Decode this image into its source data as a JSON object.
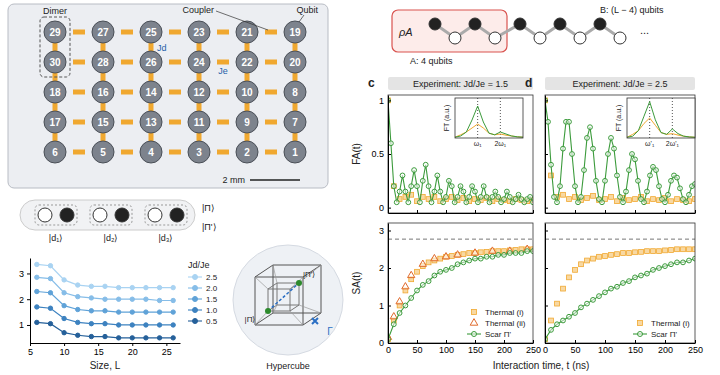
{
  "chart_data": [
    {
      "type": "line",
      "x_label": "Size, L",
      "legend_title": "Jd/Je",
      "legend": "right",
      "marker": "circle",
      "line_style": "solid",
      "x": [
        6,
        8,
        10,
        12,
        14,
        16,
        18,
        20,
        22,
        24,
        26
      ],
      "xlim": [
        5,
        27
      ],
      "xticks": [
        5,
        10,
        15,
        20,
        25
      ],
      "ylim": [
        0.3,
        3.6
      ],
      "yticks": [
        1,
        2,
        3
      ],
      "series": [
        {
          "name": "2.5",
          "color": "#a9d3f2",
          "values": [
            3.35,
            3.3,
            2.75,
            2.55,
            2.5,
            2.5,
            2.45,
            2.45,
            2.45,
            2.45,
            2.45
          ]
        },
        {
          "name": "2.0",
          "color": "#86bde8",
          "values": [
            2.85,
            2.8,
            2.25,
            2.1,
            2.05,
            2.0,
            2.0,
            2.0,
            2.0,
            1.95,
            1.95
          ]
        },
        {
          "name": "1.5",
          "color": "#5fa2d8",
          "values": [
            2.3,
            2.25,
            1.75,
            1.6,
            1.55,
            1.55,
            1.5,
            1.5,
            1.5,
            1.5,
            1.5
          ]
        },
        {
          "name": "1.0",
          "color": "#3d82c0",
          "values": [
            1.7,
            1.65,
            1.25,
            1.1,
            1.05,
            1.05,
            1.0,
            1.0,
            1.0,
            1.0,
            1.0
          ]
        },
        {
          "name": "0.5",
          "color": "#25609a",
          "values": [
            1.1,
            1.05,
            0.7,
            0.6,
            0.55,
            0.55,
            0.5,
            0.5,
            0.5,
            0.5,
            0.5
          ]
        }
      ]
    },
    {
      "type": "scatter",
      "panel_label": "c",
      "title": "Experiment: Jd/Je = 1.5",
      "y_label": "FA(t)",
      "tick_labels": "y",
      "xlim": [
        0,
        250
      ],
      "xticks": [
        0,
        50,
        100,
        150,
        200,
        250
      ],
      "ylim": [
        -0.05,
        1.05
      ],
      "yticks": [
        0,
        0.5,
        1
      ],
      "series": [
        {
          "color": "#f0a830",
          "marker": "square",
          "line_style": "none",
          "x": [
            0,
            10,
            20,
            30,
            40,
            50,
            60,
            70,
            80,
            90,
            100,
            110,
            120,
            130,
            140,
            150,
            160,
            170,
            180,
            190,
            200,
            210,
            220,
            230,
            240,
            250
          ],
          "values": [
            1.0,
            0.2,
            0.08,
            0.1,
            0.12,
            0.06,
            0.1,
            0.08,
            0.1,
            0.06,
            0.08,
            0.1,
            0.07,
            0.09,
            0.06,
            0.08,
            0.07,
            0.09,
            0.06,
            0.08,
            0.07,
            0.06,
            0.08,
            0.07,
            0.06,
            0.07
          ]
        },
        {
          "color": "#3c9b3c",
          "marker": "circle-open",
          "line_style": "solid",
          "x": [
            0,
            5,
            10,
            15,
            20,
            25,
            30,
            35,
            40,
            45,
            50,
            55,
            60,
            65,
            70,
            75,
            80,
            85,
            90,
            95,
            100,
            105,
            110,
            115,
            120,
            125,
            130,
            135,
            140,
            145,
            150,
            155,
            160,
            165,
            170,
            175,
            180,
            185,
            190,
            195,
            200,
            205,
            210,
            215,
            220,
            225,
            230,
            235,
            240,
            245,
            250
          ],
          "values": [
            1.0,
            0.6,
            0.2,
            0.05,
            0.15,
            0.3,
            0.15,
            0.05,
            0.2,
            0.35,
            0.2,
            0.05,
            0.25,
            0.4,
            0.2,
            0.05,
            0.15,
            0.3,
            0.15,
            0.05,
            0.1,
            0.25,
            0.2,
            0.05,
            0.1,
            0.2,
            0.15,
            0.05,
            0.1,
            0.2,
            0.15,
            0.05,
            0.1,
            0.2,
            0.1,
            0.05,
            0.1,
            0.15,
            0.1,
            0.05,
            0.08,
            0.15,
            0.1,
            0.05,
            0.08,
            0.12,
            0.08,
            0.05,
            0.08,
            0.1,
            0.05
          ]
        }
      ]
    },
    {
      "type": "line",
      "y_label": "FT (a.u.)",
      "tick_labels": false,
      "line_style": "solid",
      "xlim": [
        0,
        12
      ],
      "ylim": [
        0,
        1
      ],
      "x": [
        0,
        1,
        2,
        3,
        4,
        5,
        6,
        7,
        8,
        9,
        10,
        11,
        12
      ],
      "annotations": [
        {
          "x": 4,
          "label": "ω₁"
        },
        {
          "x": 8,
          "label": "2ω₁"
        }
      ],
      "series": [
        {
          "color": "#f0a830",
          "values": [
            0.02,
            0.08,
            0.15,
            0.25,
            0.35,
            0.25,
            0.12,
            0.08,
            0.1,
            0.07,
            0.05,
            0.03,
            0.02
          ]
        },
        {
          "color": "#3c9b3c",
          "values": [
            0.02,
            0.05,
            0.15,
            0.45,
            0.8,
            0.4,
            0.12,
            0.08,
            0.15,
            0.1,
            0.05,
            0.03,
            0.02
          ]
        }
      ]
    },
    {
      "type": "scatter",
      "y_label": "SA(t)",
      "legend": "lower right",
      "xlim": [
        0,
        250
      ],
      "xticks": [
        0,
        50,
        100,
        150,
        200,
        250
      ],
      "ylim": [
        0,
        3.2
      ],
      "yticks": [
        0,
        1,
        2,
        3
      ],
      "hlines": [
        2.77
      ],
      "series": [
        {
          "name": "Thermal (i)",
          "color": "#f0a830",
          "marker": "square",
          "line_style": "none",
          "x": [
            0,
            10,
            20,
            30,
            40,
            50,
            60,
            70,
            80,
            90,
            100,
            110,
            120,
            130,
            140,
            150,
            160,
            170,
            180,
            190,
            200,
            210,
            220,
            230,
            240,
            250
          ],
          "values": [
            0.1,
            0.6,
            1.0,
            1.4,
            1.7,
            1.9,
            2.05,
            2.15,
            2.2,
            2.25,
            2.3,
            2.32,
            2.35,
            2.37,
            2.4,
            2.4,
            2.42,
            2.43,
            2.45,
            2.45,
            2.45,
            2.47,
            2.48,
            2.5,
            2.5,
            2.5
          ]
        },
        {
          "name": "Thermal (ii)",
          "color": "#e06a2c",
          "marker": "triangle",
          "line_style": "none",
          "x": [
            0,
            10,
            20,
            30,
            40,
            60,
            80,
            100,
            120,
            150,
            180,
            210,
            240
          ],
          "values": [
            0.15,
            0.7,
            1.1,
            1.5,
            1.8,
            2.1,
            2.25,
            2.3,
            2.35,
            2.4,
            2.45,
            2.45,
            2.5
          ]
        },
        {
          "name": "Scar Π'",
          "color": "#3c9b3c",
          "marker": "circle-open",
          "line_style": "solid",
          "x": [
            0,
            10,
            20,
            30,
            40,
            50,
            60,
            70,
            80,
            90,
            100,
            110,
            120,
            130,
            140,
            150,
            160,
            170,
            180,
            190,
            200,
            210,
            220,
            230,
            240,
            250
          ],
          "values": [
            0.1,
            0.5,
            0.8,
            1.0,
            1.2,
            1.4,
            1.55,
            1.65,
            1.8,
            1.9,
            1.95,
            2.0,
            2.1,
            2.15,
            2.2,
            2.25,
            2.25,
            2.3,
            2.3,
            2.35,
            2.35,
            2.4,
            2.4,
            2.4,
            2.45,
            2.45
          ]
        }
      ]
    },
    {
      "type": "scatter",
      "panel_label": "d",
      "title": "Experiment: Jd/Je = 2.5",
      "tick_labels": false,
      "xlim": [
        0,
        250
      ],
      "xticks": [
        0,
        50,
        100,
        150,
        200,
        250
      ],
      "ylim": [
        -0.05,
        1.05
      ],
      "yticks": [
        0,
        0.5,
        1
      ],
      "series": [
        {
          "color": "#f0a830",
          "marker": "square",
          "line_style": "none",
          "x": [
            0,
            10,
            20,
            30,
            40,
            50,
            60,
            70,
            80,
            90,
            100,
            110,
            120,
            130,
            140,
            150,
            160,
            170,
            180,
            190,
            200,
            210,
            220,
            230,
            240,
            250
          ],
          "values": [
            1.0,
            0.3,
            0.1,
            0.12,
            0.08,
            0.1,
            0.07,
            0.09,
            0.11,
            0.07,
            0.08,
            0.1,
            0.06,
            0.09,
            0.07,
            0.08,
            0.1,
            0.06,
            0.08,
            0.07,
            0.09,
            0.06,
            0.08,
            0.07,
            0.06,
            0.08
          ]
        },
        {
          "color": "#3c9b3c",
          "marker": "circle-open",
          "line_style": "solid",
          "x": [
            0,
            5,
            10,
            15,
            20,
            25,
            30,
            35,
            40,
            45,
            50,
            55,
            60,
            65,
            70,
            75,
            80,
            85,
            90,
            95,
            100,
            105,
            110,
            115,
            120,
            125,
            130,
            135,
            140,
            145,
            150,
            155,
            160,
            165,
            170,
            175,
            180,
            185,
            190,
            195,
            200,
            205,
            210,
            215,
            220,
            225,
            230,
            235,
            240,
            245,
            250
          ],
          "values": [
            1.0,
            0.8,
            0.4,
            0.1,
            0.05,
            0.2,
            0.55,
            0.8,
            0.8,
            0.5,
            0.2,
            0.05,
            0.1,
            0.35,
            0.65,
            0.75,
            0.55,
            0.25,
            0.08,
            0.05,
            0.25,
            0.5,
            0.65,
            0.55,
            0.3,
            0.1,
            0.05,
            0.15,
            0.35,
            0.5,
            0.45,
            0.25,
            0.08,
            0.05,
            0.15,
            0.3,
            0.38,
            0.35,
            0.2,
            0.08,
            0.05,
            0.12,
            0.25,
            0.3,
            0.28,
            0.18,
            0.08,
            0.05,
            0.12,
            0.2,
            0.22
          ]
        }
      ]
    },
    {
      "type": "line",
      "y_label": "FT (a.u.)",
      "tick_labels": false,
      "line_style": "solid",
      "xlim": [
        0,
        12
      ],
      "ylim": [
        0,
        1.1
      ],
      "x": [
        0,
        1,
        2,
        3,
        4,
        5,
        6,
        7,
        8,
        9,
        10,
        11,
        12
      ],
      "annotations": [
        {
          "x": 4,
          "label": "ω'₁"
        },
        {
          "x": 8,
          "label": "2ω'₁"
        }
      ],
      "series": [
        {
          "color": "#f0a830",
          "values": [
            0.02,
            0.1,
            0.2,
            0.4,
            0.55,
            0.35,
            0.15,
            0.1,
            0.12,
            0.08,
            0.05,
            0.03,
            0.02
          ]
        },
        {
          "color": "#3c9b3c",
          "values": [
            0.02,
            0.05,
            0.2,
            0.6,
            1.0,
            0.5,
            0.15,
            0.1,
            0.25,
            0.12,
            0.05,
            0.03,
            0.02
          ]
        }
      ]
    },
    {
      "type": "scatter",
      "x_label": "Interaction time, t (ns)",
      "legend": "lower right",
      "tick_labels": "x",
      "xlim": [
        0,
        250
      ],
      "xticks": [
        0,
        50,
        100,
        150,
        200,
        250
      ],
      "ylim": [
        0,
        3.2
      ],
      "yticks": [
        0,
        1,
        2,
        3
      ],
      "hlines": [
        2.77
      ],
      "series": [
        {
          "name": "Thermal (i)",
          "color": "#f0a830",
          "marker": "square",
          "line_style": "none",
          "x": [
            0,
            10,
            20,
            30,
            40,
            50,
            60,
            70,
            80,
            90,
            100,
            110,
            120,
            130,
            140,
            150,
            160,
            170,
            180,
            190,
            200,
            210,
            220,
            230,
            240,
            250
          ],
          "values": [
            0.1,
            0.6,
            1.05,
            1.45,
            1.75,
            1.95,
            2.1,
            2.2,
            2.25,
            2.3,
            2.32,
            2.35,
            2.37,
            2.4,
            2.4,
            2.42,
            2.43,
            2.45,
            2.45,
            2.45,
            2.47,
            2.48,
            2.5,
            2.5,
            2.5,
            2.5
          ]
        },
        {
          "name": "Scar Π'",
          "color": "#3c9b3c",
          "marker": "circle-open",
          "line_style": "solid",
          "x": [
            0,
            10,
            20,
            30,
            40,
            50,
            60,
            70,
            80,
            90,
            100,
            110,
            120,
            130,
            140,
            150,
            160,
            170,
            180,
            190,
            200,
            210,
            220,
            230,
            240,
            250
          ],
          "values": [
            0.1,
            0.35,
            0.5,
            0.6,
            0.7,
            0.8,
            0.95,
            1.05,
            1.15,
            1.25,
            1.35,
            1.45,
            1.5,
            1.6,
            1.65,
            1.75,
            1.8,
            1.85,
            1.95,
            2.0,
            2.05,
            2.1,
            2.15,
            2.15,
            2.2,
            2.25
          ]
        }
      ]
    }
  ],
  "diagrams": {
    "chip": {
      "qubits": [
        [
          29,
          27,
          25,
          23,
          21,
          19
        ],
        [
          30,
          28,
          26,
          24,
          22,
          20
        ],
        [
          18,
          16,
          14,
          12,
          10,
          8
        ],
        [
          17,
          15,
          13,
          11,
          9,
          7
        ],
        [
          6,
          5,
          4,
          3,
          2,
          1
        ]
      ],
      "labels": {
        "dimer": "Dimer",
        "coupler": "Coupler",
        "qubit": "Qubit",
        "jd": "Jd",
        "je": "Je",
        "scale": "2 mm"
      }
    },
    "chain": {
      "dimers": [
        "|d₁⟩",
        "|d₂⟩",
        "|d₃⟩"
      ],
      "states": [
        "|Π⟩",
        "|Π'⟩"
      ]
    },
    "hypercube": {
      "title": "Hypercube",
      "states": [
        "|Π⟩",
        "|Π'⟩"
      ],
      "path": "Γ"
    },
    "subsystem": {
      "rho": "ρA",
      "a": "A: 4 qubits",
      "b": "B: (L − 4) qubits",
      "ellipsis": "..."
    }
  }
}
